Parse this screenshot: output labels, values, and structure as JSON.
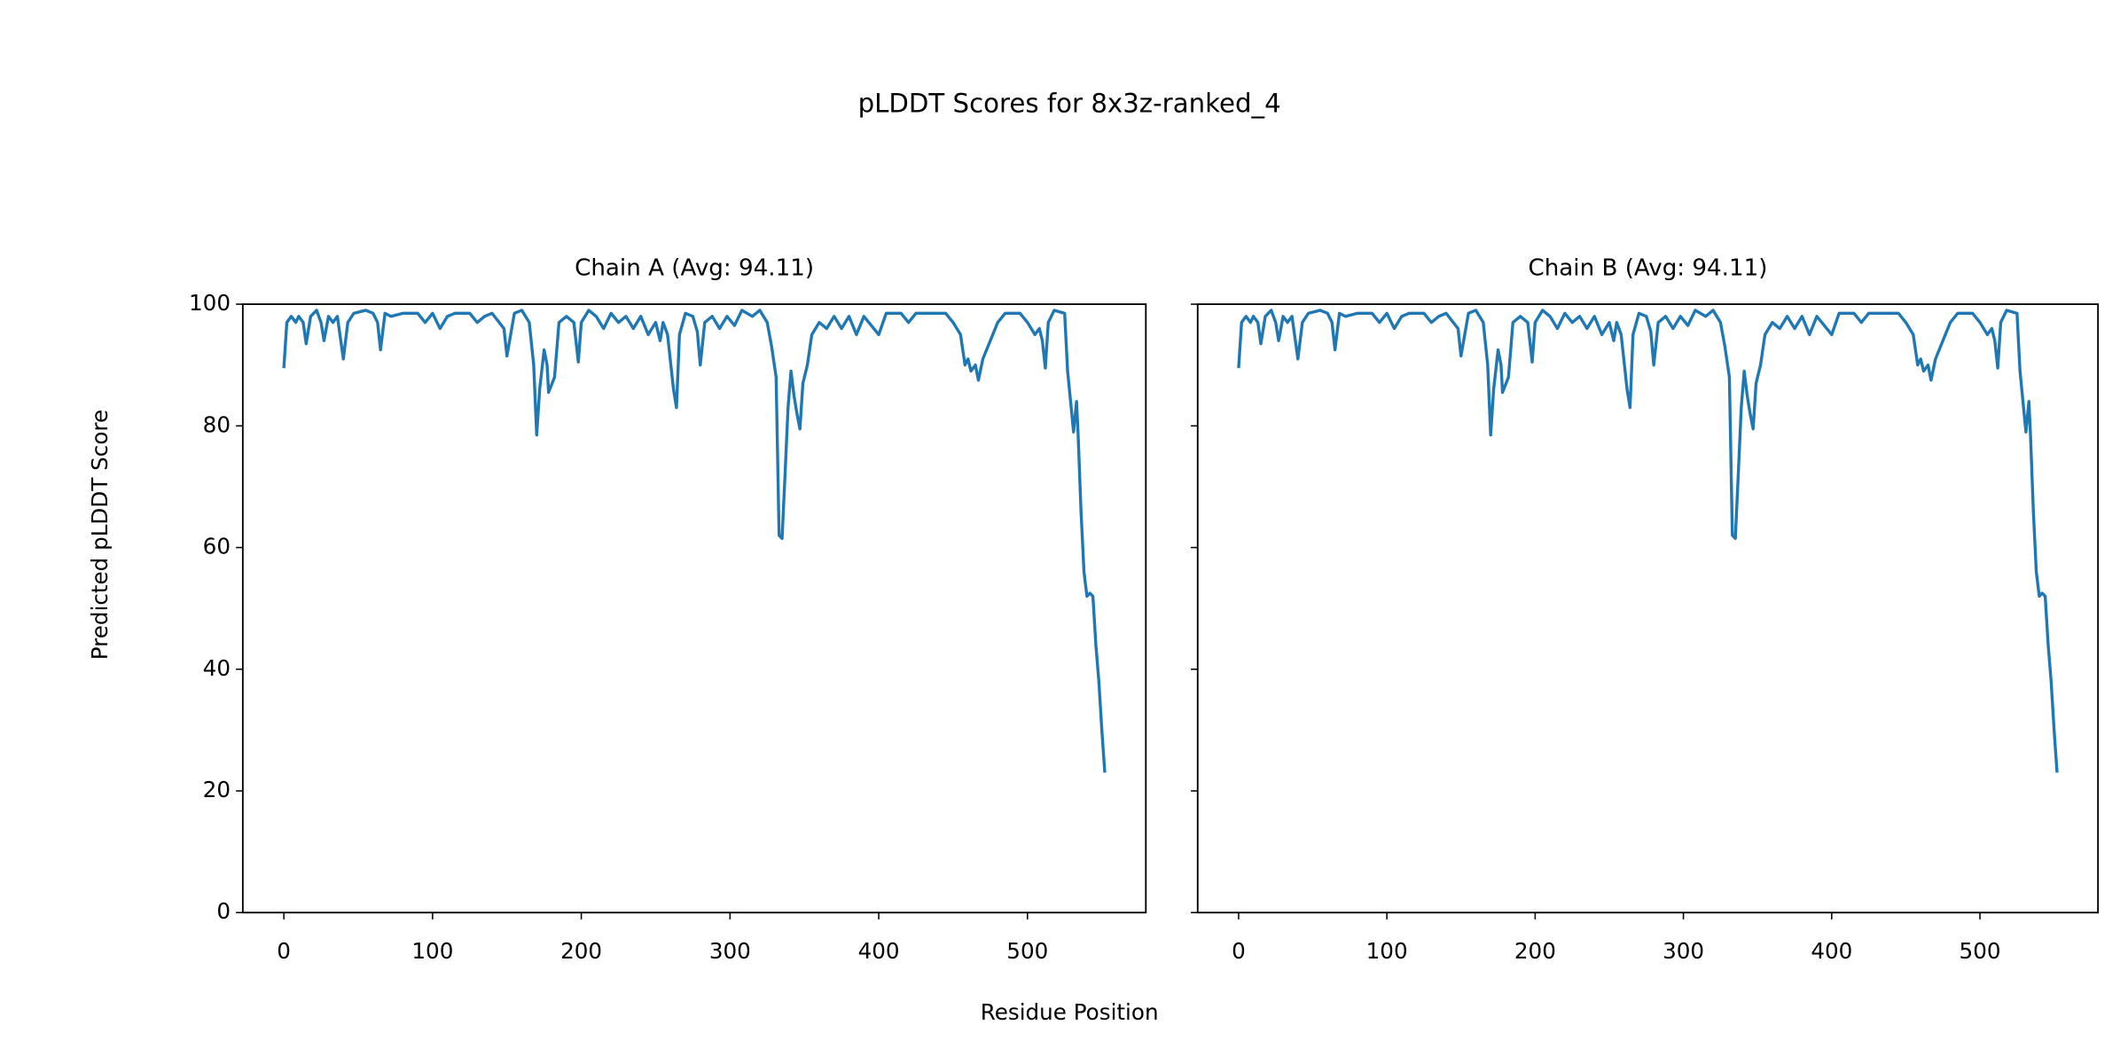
{
  "title": "pLDDT Scores for 8x3z-ranked_4",
  "xlabel": "Residue Position",
  "ylabel": "Predicted pLDDT Score",
  "chart_data": [
    {
      "type": "line",
      "title": "Chain A (Avg: 94.11)",
      "color": "#1f77b4",
      "xlim": [
        -27.6,
        579.6
      ],
      "ylim": [
        0,
        100
      ],
      "xticks": [
        0,
        100,
        200,
        300,
        400,
        500
      ],
      "yticks": [
        0,
        20,
        40,
        60,
        80,
        100
      ],
      "show_ytick_labels": true,
      "x": [
        0,
        2,
        5,
        8,
        10,
        13,
        15,
        18,
        22,
        25,
        27,
        30,
        33,
        36,
        40,
        43,
        47,
        55,
        60,
        63,
        65,
        68,
        72,
        80,
        90,
        95,
        100,
        105,
        110,
        115,
        125,
        130,
        135,
        140,
        148,
        150,
        155,
        160,
        165,
        168,
        170,
        172,
        175,
        177,
        178,
        182,
        185,
        190,
        195,
        198,
        200,
        205,
        210,
        215,
        220,
        225,
        230,
        235,
        240,
        245,
        250,
        253,
        255,
        258,
        262,
        264,
        266,
        270,
        275,
        278,
        280,
        283,
        288,
        293,
        298,
        303,
        308,
        315,
        320,
        325,
        328,
        331,
        333,
        335,
        337,
        339,
        341,
        343,
        345,
        347,
        349,
        352,
        355,
        360,
        365,
        370,
        375,
        380,
        385,
        390,
        395,
        400,
        405,
        415,
        420,
        425,
        435,
        445,
        450,
        455,
        458,
        460,
        462,
        465,
        467,
        470,
        475,
        480,
        485,
        495,
        500,
        505,
        508,
        510,
        512,
        514,
        518,
        525,
        527,
        529,
        531,
        533,
        534,
        536,
        538,
        540,
        542,
        544,
        546,
        548,
        550,
        552
      ],
      "values": [
        89.5,
        97,
        98,
        97,
        98,
        97,
        93.5,
        98,
        99,
        97,
        94,
        98,
        97,
        98,
        91,
        97,
        98.5,
        99,
        98.5,
        97,
        92.5,
        98.5,
        98,
        98.5,
        98.5,
        97,
        98.5,
        96,
        98,
        98.5,
        98.5,
        97,
        98,
        98.5,
        96,
        91.5,
        98.5,
        99,
        97,
        90,
        78.5,
        86,
        92.5,
        90,
        85.5,
        88,
        97,
        98,
        97,
        90.5,
        97,
        99,
        98,
        96,
        98.5,
        97,
        98,
        96,
        98,
        95,
        97,
        94,
        97,
        95,
        86,
        83,
        95,
        98.5,
        98,
        95.5,
        90,
        97,
        98,
        96,
        98,
        96.5,
        99,
        98,
        99,
        97,
        93,
        88,
        62,
        61.5,
        72,
        83,
        89,
        85,
        82,
        79.5,
        87,
        90,
        95,
        97,
        96,
        98,
        96,
        98,
        95,
        98,
        96.5,
        95,
        98.5,
        98.5,
        97,
        98.5,
        98.5,
        98.5,
        97,
        95,
        90,
        91,
        89,
        90,
        87.5,
        91,
        94,
        97,
        98.5,
        98.5,
        97,
        95,
        96,
        94,
        89.5,
        97,
        99,
        98.5,
        89,
        84,
        79,
        84,
        79,
        66,
        56,
        52,
        52.5,
        52,
        44,
        38,
        30,
        23
      ]
    },
    {
      "type": "line",
      "title": "Chain B (Avg: 94.11)",
      "color": "#1f77b4",
      "xlim": [
        -27.6,
        579.6
      ],
      "ylim": [
        0,
        100
      ],
      "xticks": [
        0,
        100,
        200,
        300,
        400,
        500
      ],
      "yticks": [
        0,
        20,
        40,
        60,
        80,
        100
      ],
      "show_ytick_labels": false,
      "x": [
        0,
        2,
        5,
        8,
        10,
        13,
        15,
        18,
        22,
        25,
        27,
        30,
        33,
        36,
        40,
        43,
        47,
        55,
        60,
        63,
        65,
        68,
        72,
        80,
        90,
        95,
        100,
        105,
        110,
        115,
        125,
        130,
        135,
        140,
        148,
        150,
        155,
        160,
        165,
        168,
        170,
        172,
        175,
        177,
        178,
        182,
        185,
        190,
        195,
        198,
        200,
        205,
        210,
        215,
        220,
        225,
        230,
        235,
        240,
        245,
        250,
        253,
        255,
        258,
        262,
        264,
        266,
        270,
        275,
        278,
        280,
        283,
        288,
        293,
        298,
        303,
        308,
        315,
        320,
        325,
        328,
        331,
        333,
        335,
        337,
        339,
        341,
        343,
        345,
        347,
        349,
        352,
        355,
        360,
        365,
        370,
        375,
        380,
        385,
        390,
        395,
        400,
        405,
        415,
        420,
        425,
        435,
        445,
        450,
        455,
        458,
        460,
        462,
        465,
        467,
        470,
        475,
        480,
        485,
        495,
        500,
        505,
        508,
        510,
        512,
        514,
        518,
        525,
        527,
        529,
        531,
        533,
        534,
        536,
        538,
        540,
        542,
        544,
        546,
        548,
        550,
        552
      ],
      "values": [
        89.5,
        97,
        98,
        97,
        98,
        97,
        93.5,
        98,
        99,
        97,
        94,
        98,
        97,
        98,
        91,
        97,
        98.5,
        99,
        98.5,
        97,
        92.5,
        98.5,
        98,
        98.5,
        98.5,
        97,
        98.5,
        96,
        98,
        98.5,
        98.5,
        97,
        98,
        98.5,
        96,
        91.5,
        98.5,
        99,
        97,
        90,
        78.5,
        86,
        92.5,
        90,
        85.5,
        88,
        97,
        98,
        97,
        90.5,
        97,
        99,
        98,
        96,
        98.5,
        97,
        98,
        96,
        98,
        95,
        97,
        94,
        97,
        95,
        86,
        83,
        95,
        98.5,
        98,
        95.5,
        90,
        97,
        98,
        96,
        98,
        96.5,
        99,
        98,
        99,
        97,
        93,
        88,
        62,
        61.5,
        72,
        83,
        89,
        85,
        82,
        79.5,
        87,
        90,
        95,
        97,
        96,
        98,
        96,
        98,
        95,
        98,
        96.5,
        95,
        98.5,
        98.5,
        97,
        98.5,
        98.5,
        98.5,
        97,
        95,
        90,
        91,
        89,
        90,
        87.5,
        91,
        94,
        97,
        98.5,
        98.5,
        97,
        95,
        96,
        94,
        89.5,
        97,
        99,
        98.5,
        89,
        84,
        79,
        84,
        79,
        66,
        56,
        52,
        52.5,
        52,
        44,
        38,
        30,
        23
      ]
    }
  ]
}
